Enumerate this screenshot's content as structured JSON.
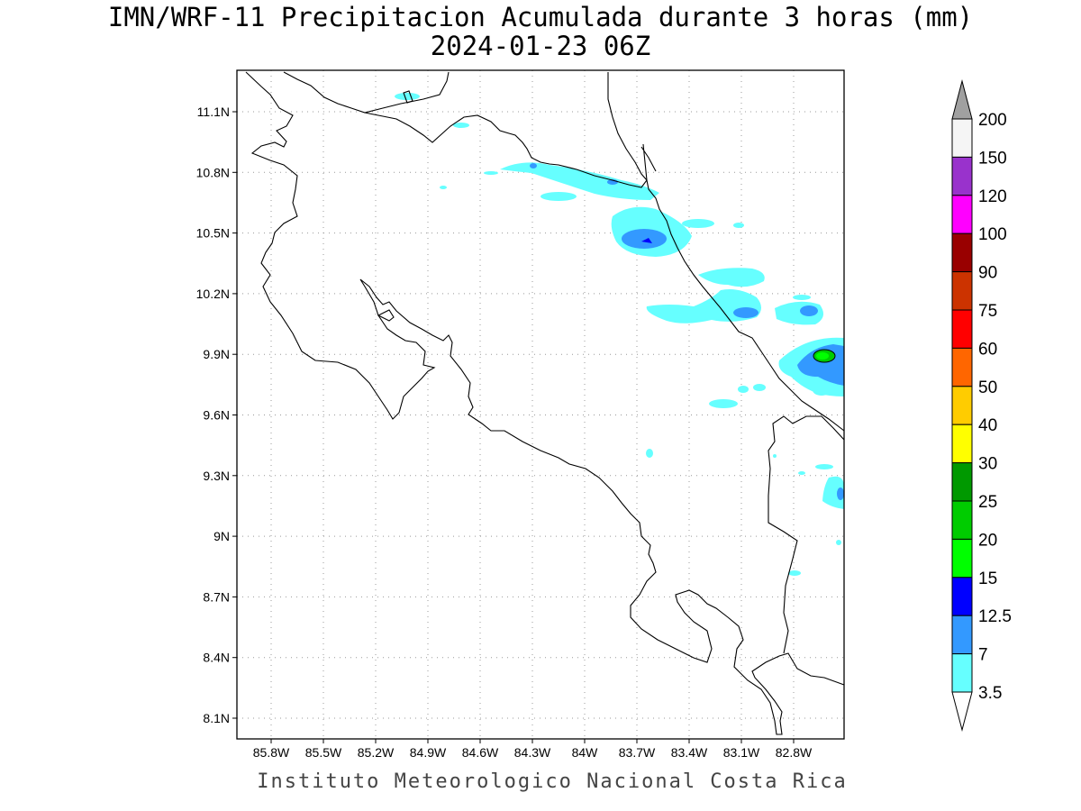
{
  "header": {
    "title": "IMN/WRF-11 Precipitacion Acumulada durante 3 horas (mm)",
    "subtitle": "2024-01-23 06Z"
  },
  "footer": {
    "credit": "Instituto Meteorologico Nacional Costa Rica"
  },
  "axes": {
    "lon_labels": [
      "85.8W",
      "85.5W",
      "85.2W",
      "84.9W",
      "84.6W",
      "84.3W",
      "84W",
      "83.7W",
      "83.4W",
      "83.1W",
      "82.8W"
    ],
    "lat_labels": [
      "11.1N",
      "10.8N",
      "10.5N",
      "10.2N",
      "9.9N",
      "9.6N",
      "9.3N",
      "9N",
      "8.7N",
      "8.4N",
      "8.1N"
    ]
  },
  "colorbar": {
    "levels": [
      "200",
      "150",
      "120",
      "100",
      "90",
      "75",
      "60",
      "50",
      "40",
      "30",
      "25",
      "20",
      "15",
      "12.5",
      "7",
      "3.5"
    ],
    "colors": [
      "#f5f5f5",
      "#9932cc",
      "#ff00ff",
      "#990000",
      "#cc3300",
      "#ff0000",
      "#ff6600",
      "#ffcc00",
      "#ffff00",
      "#009900",
      "#00cc00",
      "#00ff00",
      "#0000ff",
      "#3399ff",
      "#66ffff"
    ],
    "over_color": "#a0a0a0",
    "under_color": "#ffffff"
  },
  "precip_palette": {
    "light": "#66ffff",
    "medium": "#3399ff",
    "heavy": "#00ff00"
  }
}
